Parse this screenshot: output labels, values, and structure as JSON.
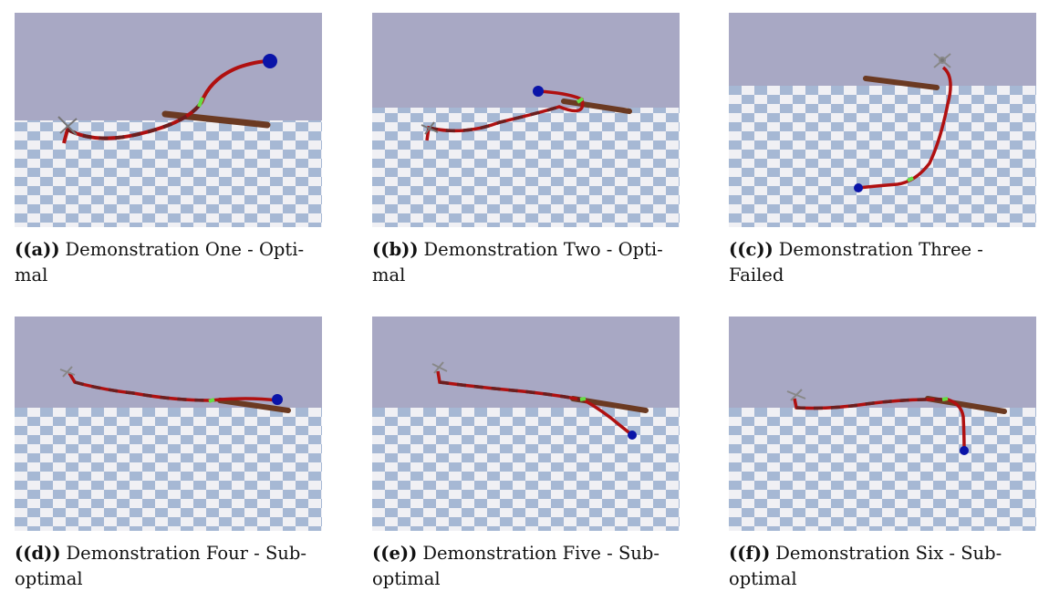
{
  "figure": {
    "panels": [
      {
        "tag": "((a))",
        "caption": "Demonstration One - Opti-",
        "caption_cont": "mal",
        "outcome": "Optimal"
      },
      {
        "tag": "((b))",
        "caption": "Demonstration Two - Opti-",
        "caption_cont": "mal",
        "outcome": "Optimal"
      },
      {
        "tag": "((c))",
        "caption": "Demonstration Three -",
        "caption_cont": "Failed",
        "outcome": "Failed"
      },
      {
        "tag": "((d))",
        "caption": "Demonstration Four - Sub-",
        "caption_cont": "optimal",
        "outcome": "Suboptimal"
      },
      {
        "tag": "((e))",
        "caption": "Demonstration Five - Sub-",
        "caption_cont": "optimal",
        "outcome": "Suboptimal"
      },
      {
        "tag": "((f))",
        "caption": "Demonstration Six - Sub-",
        "caption_cont": "optimal",
        "outcome": "Suboptimal"
      }
    ],
    "colors": {
      "sky": "#a8a8c4",
      "tile_light": "#f0f0f4",
      "tile_dark": "#a6b8d4",
      "trajectory": "#b01010",
      "trajectory_dash": "#6b1f1f",
      "branch": "#6b3a22",
      "contact": "#66dd44",
      "endpoint": "#0a14a8",
      "drone": "#8a8a8a"
    }
  }
}
